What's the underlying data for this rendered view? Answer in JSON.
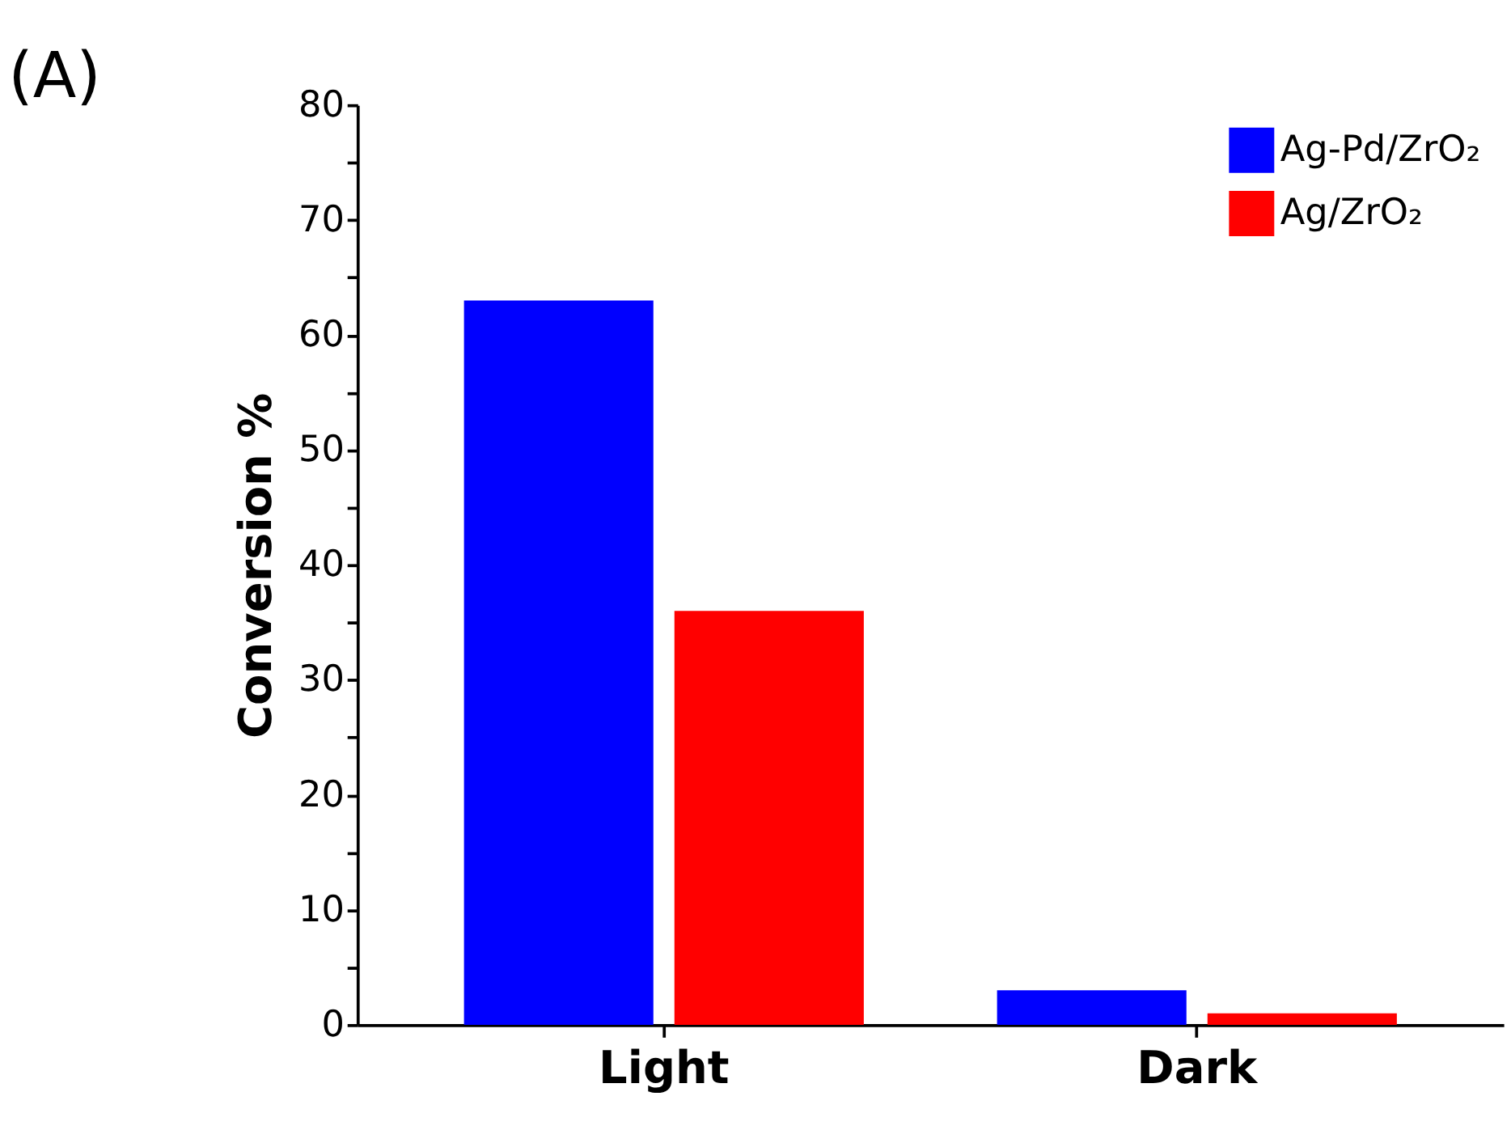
{
  "chart_data": {
    "type": "bar",
    "annotations": [
      "(A)"
    ],
    "ylabel": "Conversion %",
    "categories": [
      "Light",
      "Dark"
    ],
    "series": [
      {
        "name": "Ag-Pd/ZrO₂",
        "color": "#0000ff",
        "values": [
          63,
          3
        ]
      },
      {
        "name": "Ag/ZrO₂",
        "color": "#ff0000",
        "values": [
          36,
          1
        ]
      }
    ],
    "ylim": [
      0,
      80
    ],
    "yticks": [
      0,
      {
        "value": 5,
        "label": null
      },
      10,
      {
        "value": 15,
        "label": null
      },
      20,
      {
        "value": 25,
        "label": null
      },
      30,
      {
        "value": 35,
        "label": null
      },
      40,
      {
        "value": 45,
        "label": null
      },
      50,
      {
        "value": 55,
        "label": null
      },
      60,
      {
        "value": 65,
        "label": null
      },
      70,
      {
        "value": 75,
        "label": null
      },
      80
    ],
    "legend": "top right",
    "grid": false
  }
}
